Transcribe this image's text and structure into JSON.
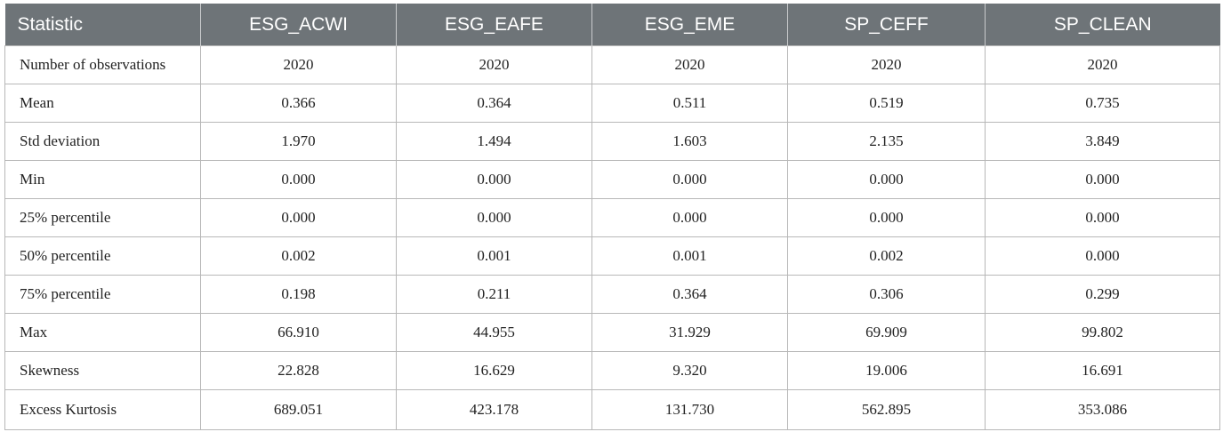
{
  "table": {
    "columns": [
      "Statistic",
      "ESG_ACWI",
      "ESG_EAFE",
      "ESG_EME",
      "SP_CEFF",
      "SP_CLEAN"
    ],
    "rows": [
      {
        "label": "Number of observations",
        "values": [
          "2020",
          "2020",
          "2020",
          "2020",
          "2020"
        ]
      },
      {
        "label": "Mean",
        "values": [
          "0.366",
          "0.364",
          "0.511",
          "0.519",
          "0.735"
        ]
      },
      {
        "label": "Std deviation",
        "values": [
          "1.970",
          "1.494",
          "1.603",
          "2.135",
          "3.849"
        ]
      },
      {
        "label": "Min",
        "values": [
          "0.000",
          "0.000",
          "0.000",
          "0.000",
          "0.000"
        ]
      },
      {
        "label": "25% percentile",
        "values": [
          "0.000",
          "0.000",
          "0.000",
          "0.000",
          "0.000"
        ]
      },
      {
        "label": "50% percentile",
        "values": [
          "0.002",
          "0.001",
          "0.001",
          "0.002",
          "0.000"
        ]
      },
      {
        "label": "75% percentile",
        "values": [
          "0.198",
          "0.211",
          "0.364",
          "0.306",
          "0.299"
        ]
      },
      {
        "label": "Max",
        "values": [
          "66.910",
          "44.955",
          "31.929",
          "69.909",
          "99.802"
        ]
      },
      {
        "label": "Skewness",
        "values": [
          "22.828",
          "16.629",
          "9.320",
          "19.006",
          "16.691"
        ]
      },
      {
        "label": "Excess Kurtosis",
        "values": [
          "689.051",
          "423.178",
          "131.730",
          "562.895",
          "353.086"
        ]
      }
    ]
  },
  "colors": {
    "header_background": "#6e7478",
    "header_text": "#ffffff",
    "grid_line": "#b7b7b7"
  }
}
